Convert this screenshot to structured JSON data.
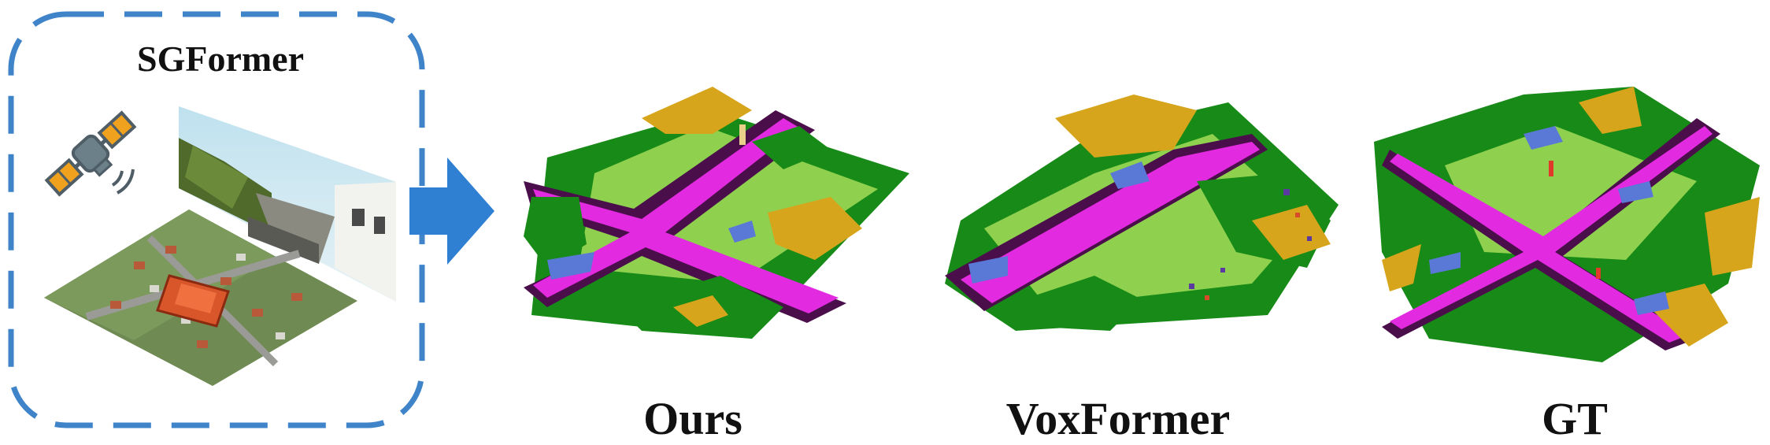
{
  "panel": {
    "title": "SGFormer"
  },
  "captions": {
    "ours": "Ours",
    "voxformer": "VoxFormer",
    "gt": "GT"
  },
  "colors": {
    "frame_border": "#3f84c9",
    "arrow": "#2f7fd3",
    "road": "#e22be0",
    "sidewalk": "#4a0f4a",
    "vegetation": "#178a17",
    "terrain": "#8fd14f",
    "trunk": "#d7a51c",
    "car": "#5a78d6",
    "pole": "#e8d08a",
    "satellite_body": "#6c8089",
    "satellite_panel": "#f0a21e"
  },
  "icons": {
    "satellite": "satellite-icon",
    "arrow": "arrow-right-icon"
  }
}
